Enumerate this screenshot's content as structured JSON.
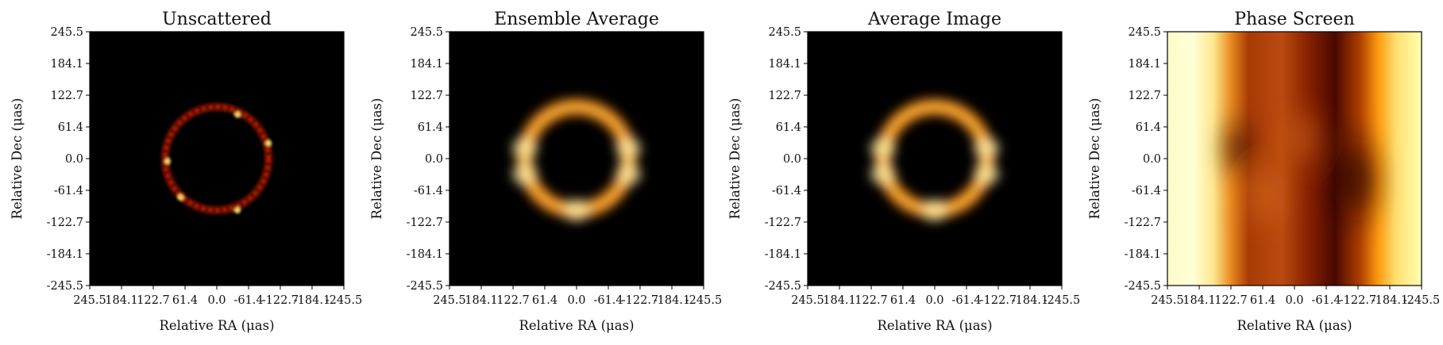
{
  "colors": {
    "background": "#ffffff",
    "axis": "#000000",
    "afmhot_stops": [
      "#000000",
      "#7a0000",
      "#ff6a00",
      "#ffd24a",
      "#ffffb8"
    ]
  },
  "chart_data": [
    {
      "type": "heatmap",
      "title": "Unscattered",
      "xlabel": "Relative RA ($\\mu$as)",
      "ylabel": "Relative Dec ($\\mu$as)",
      "xticks": [
        "245.5",
        "184.1",
        "122.7",
        "61.4",
        "0.0",
        "-61.4",
        "-122.7",
        "-184.1",
        "-245.5"
      ],
      "yticks": [
        "245.5",
        "184.1",
        "122.7",
        "61.4",
        "0.0",
        "-61.4",
        "-122.7",
        "-184.1",
        "-245.5"
      ],
      "xlim": [
        245.5,
        -245.5
      ],
      "ylim": [
        -245.5,
        245.5
      ],
      "colormap": "afmhot",
      "ring": {
        "radius_uas": 100,
        "width_uas": 5,
        "knots": [
          [
            -40,
            85
          ],
          [
            70,
            -75
          ],
          [
            95,
            -5
          ],
          [
            -100,
            30
          ],
          [
            -40,
            -100
          ]
        ]
      }
    },
    {
      "type": "heatmap",
      "title": "Ensemble Average",
      "xlabel": "Relative RA ($\\mu$as)",
      "ylabel": "Relative Dec ($\\mu$as)",
      "xticks": [
        "245.5",
        "184.1",
        "122.7",
        "61.4",
        "0.0",
        "-61.4",
        "-122.7",
        "-184.1",
        "-245.5"
      ],
      "yticks": [
        "245.5",
        "184.1",
        "122.7",
        "61.4",
        "0.0",
        "-61.4",
        "-122.7",
        "-184.1",
        "-245.5"
      ],
      "xlim": [
        245.5,
        -245.5
      ],
      "ylim": [
        -245.5,
        245.5
      ],
      "colormap": "afmhot",
      "ring": {
        "radius_uas": 100,
        "width_uas": 20,
        "knots": [
          [
            0,
            -100
          ],
          [
            -100,
            20
          ],
          [
            -100,
            -30
          ],
          [
            100,
            20
          ],
          [
            100,
            -30
          ]
        ]
      }
    },
    {
      "type": "heatmap",
      "title": "Average Image",
      "xlabel": "Relative RA ($\\mu$as)",
      "ylabel": "Relative Dec ($\\mu$as)",
      "xticks": [
        "245.5",
        "184.1",
        "122.7",
        "61.4",
        "0.0",
        "-61.4",
        "-122.7",
        "-184.1",
        "-245.5"
      ],
      "yticks": [
        "245.5",
        "184.1",
        "122.7",
        "61.4",
        "0.0",
        "-61.4",
        "-122.7",
        "-184.1",
        "-245.5"
      ],
      "xlim": [
        245.5,
        -245.5
      ],
      "ylim": [
        -245.5,
        245.5
      ],
      "colormap": "afmhot",
      "ring": {
        "radius_uas": 100,
        "width_uas": 20,
        "knots": [
          [
            0,
            -100
          ],
          [
            -100,
            20
          ],
          [
            -100,
            -30
          ],
          [
            100,
            20
          ],
          [
            100,
            -30
          ]
        ]
      }
    },
    {
      "type": "heatmap",
      "title": "Phase Screen",
      "xlabel": "Relative RA ($\\mu$as)",
      "ylabel": "Relative Dec ($\\mu$as)",
      "xticks": [
        "245.5",
        "184.1",
        "122.7",
        "61.4",
        "0.0",
        "-61.4",
        "-122.7",
        "-184.1",
        "-245.5"
      ],
      "yticks": [
        "245.5",
        "184.1",
        "122.7",
        "61.4",
        "0.0",
        "-61.4",
        "-122.7",
        "-184.1",
        "-245.5"
      ],
      "xlim": [
        245.5,
        -245.5
      ],
      "ylim": [
        -245.5,
        245.5
      ],
      "colormap": "afmhot",
      "field": "vertical-bands"
    }
  ]
}
